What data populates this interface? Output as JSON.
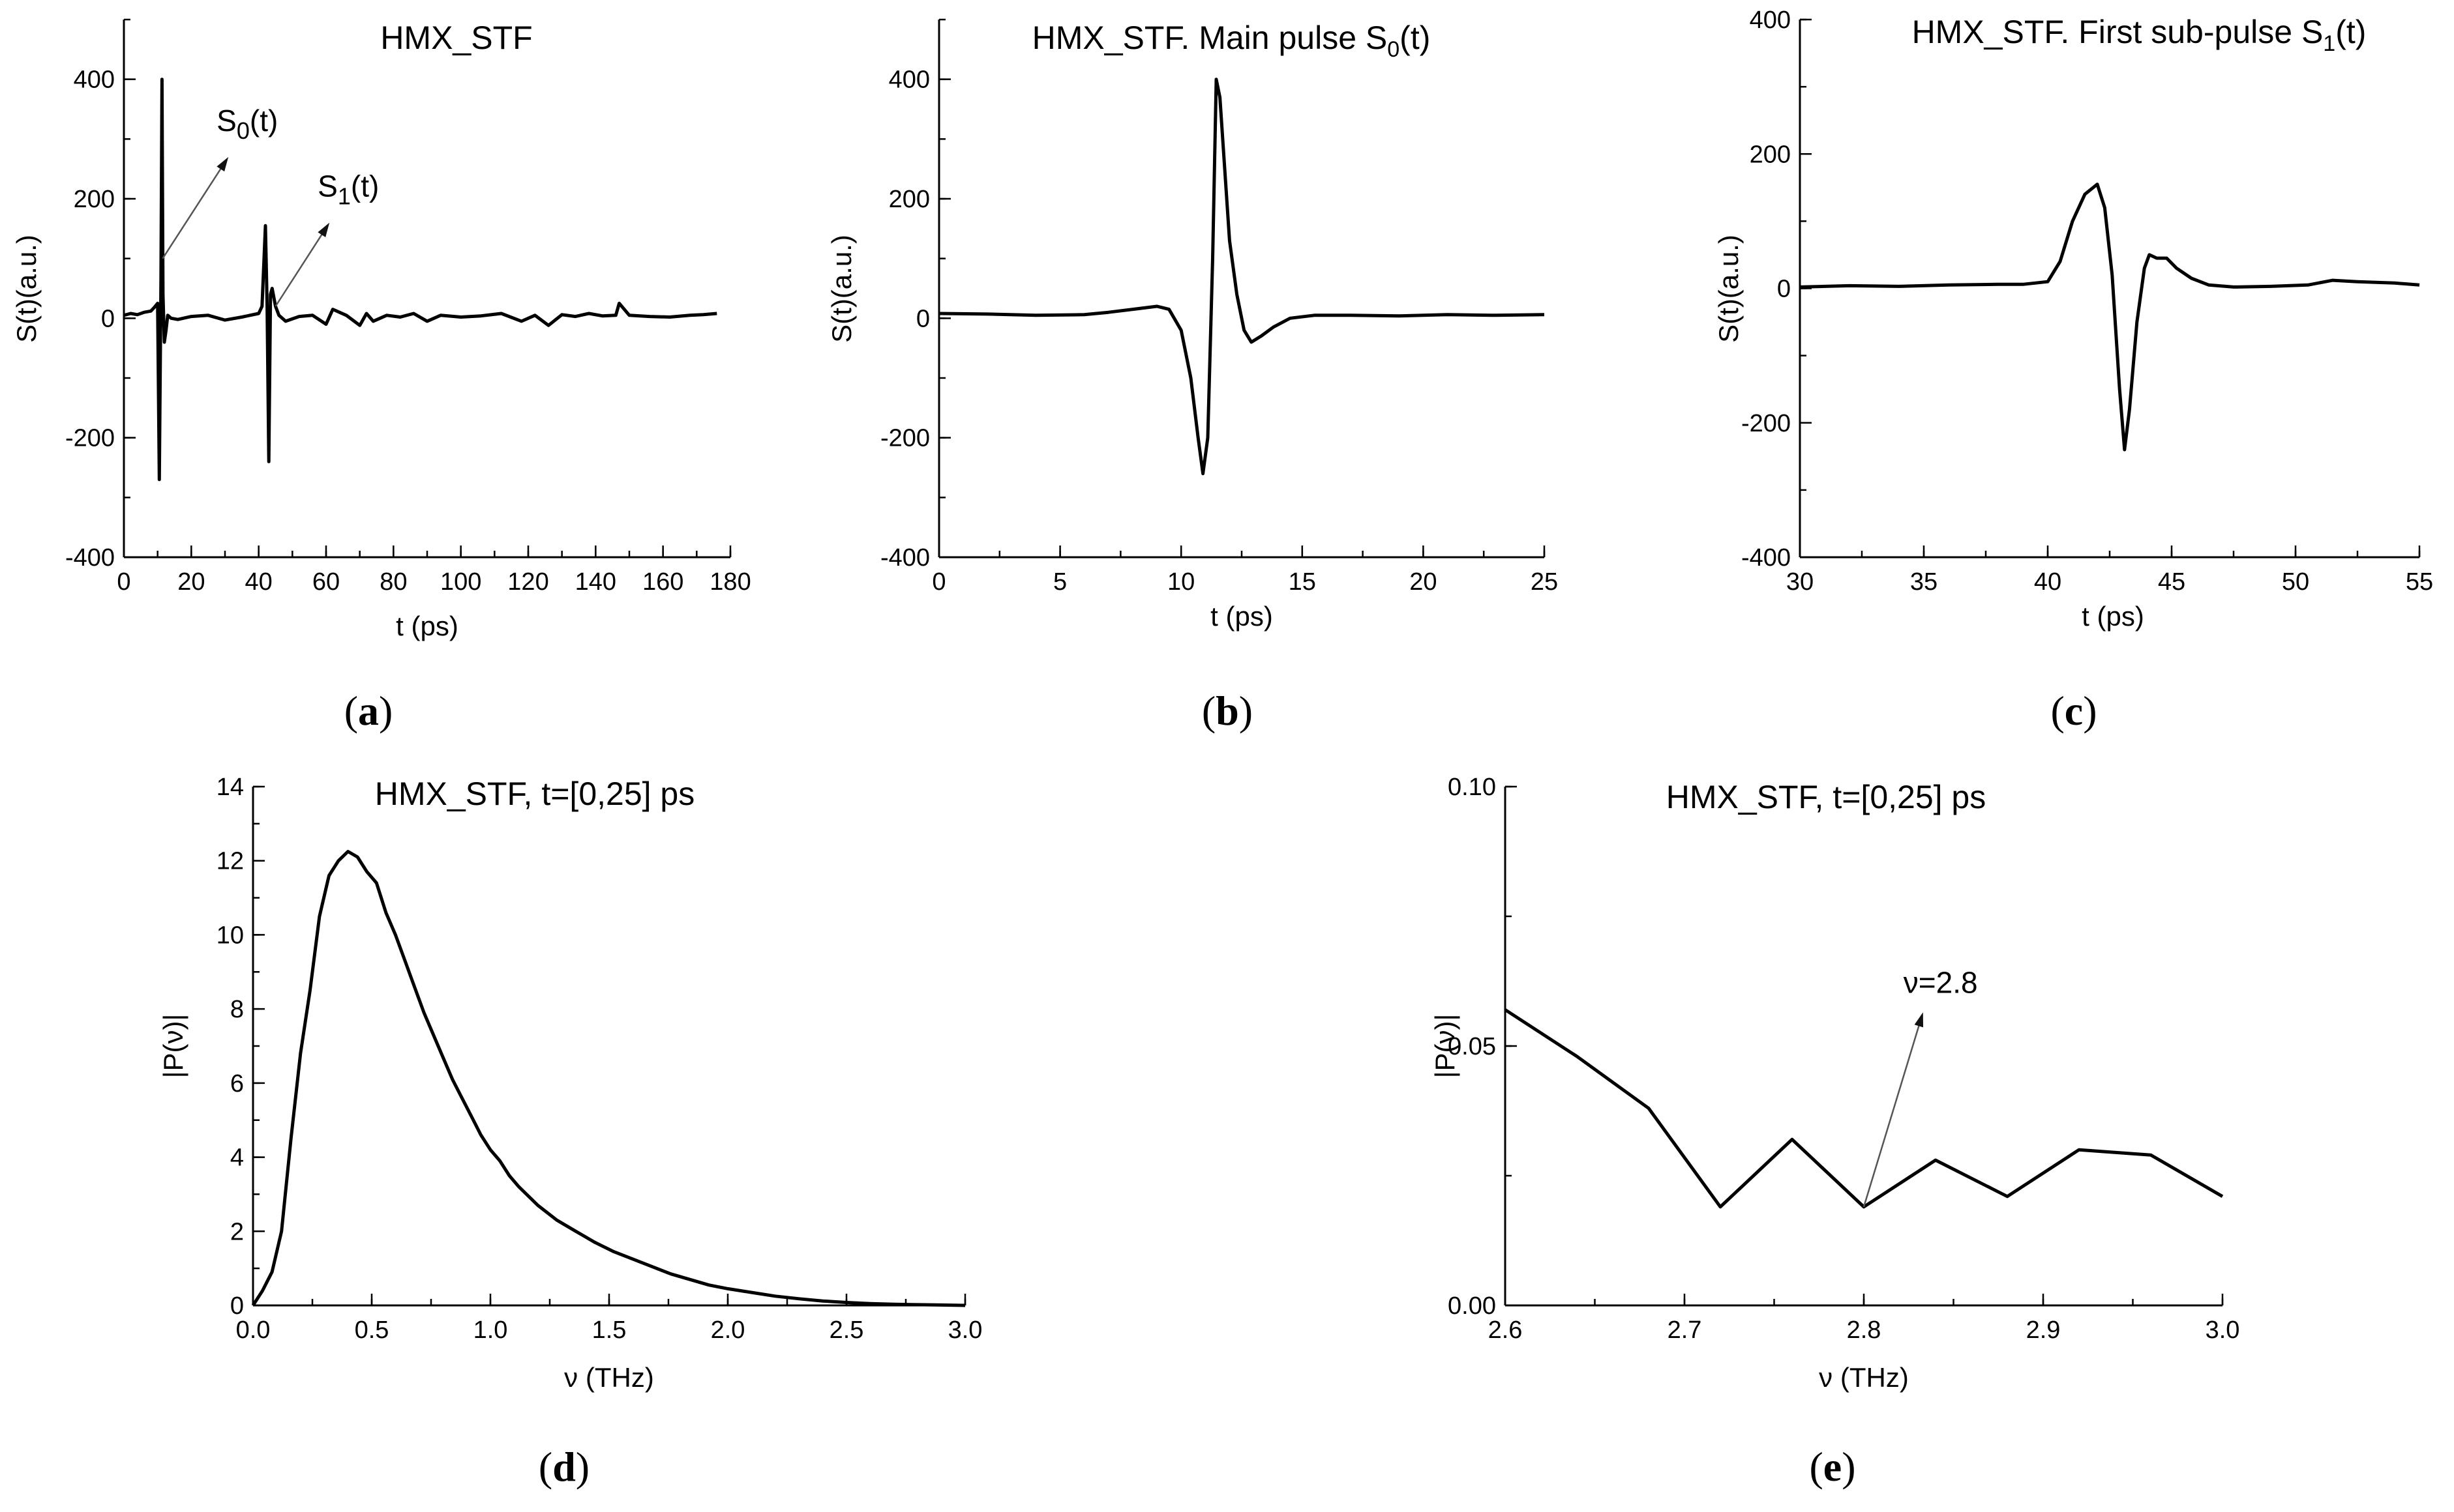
{
  "chart_data": [
    {
      "id": "a",
      "type": "line",
      "title": "HMX_STF",
      "panel_label": "a",
      "xlabel": "t (ps)",
      "ylabel": "S(t)(a.u.)",
      "xlim": [
        0,
        180
      ],
      "ylim": [
        -400,
        500
      ],
      "xticks": [
        0,
        20,
        40,
        60,
        80,
        100,
        120,
        140,
        160,
        180
      ],
      "yticks": [
        -400,
        -200,
        0,
        200,
        400
      ],
      "xminor": 10,
      "yminor": 100,
      "x": [
        0,
        2,
        4,
        6,
        8,
        9,
        10,
        10.5,
        11,
        11.3,
        11.6,
        12,
        12.5,
        13,
        14,
        16,
        20,
        25,
        30,
        35,
        40,
        41,
        42,
        42.5,
        43,
        43.5,
        44,
        45,
        46,
        48,
        52,
        56,
        60,
        62,
        66,
        70,
        72,
        74,
        78,
        82,
        86,
        90,
        94,
        100,
        106,
        112,
        118,
        122,
        126,
        130,
        134,
        138,
        142,
        146,
        147,
        150,
        156,
        162,
        168,
        172,
        176
      ],
      "y": [
        5,
        8,
        6,
        10,
        12,
        18,
        25,
        -270,
        60,
        400,
        40,
        -40,
        -20,
        5,
        0,
        -2,
        3,
        5,
        -3,
        2,
        8,
        20,
        155,
        20,
        -240,
        40,
        50,
        20,
        5,
        -5,
        3,
        5,
        -10,
        15,
        5,
        -12,
        8,
        -5,
        5,
        2,
        8,
        -5,
        5,
        2,
        4,
        8,
        -5,
        5,
        -12,
        6,
        3,
        8,
        4,
        5,
        25,
        5,
        3,
        2,
        5,
        6,
        8
      ],
      "annotations": [
        {
          "text": "S",
          "sub": "0",
          "suffix": "(t)",
          "from": [
            11.5,
            100
          ],
          "to": [
            31,
            270
          ]
        },
        {
          "text": "S",
          "sub": "1",
          "suffix": "(t)",
          "from": [
            45,
            20
          ],
          "to": [
            61,
            160
          ]
        }
      ]
    },
    {
      "id": "b",
      "type": "line",
      "title": "HMX_STF.  Main pulse  S",
      "title_sub": "0",
      "title_suffix": "(t)",
      "panel_label": "b",
      "xlabel": "t (ps)",
      "ylabel": "S(t)(a.u.)",
      "xlim": [
        0,
        25
      ],
      "ylim": [
        -400,
        500
      ],
      "xticks": [
        0,
        5,
        10,
        15,
        20,
        25
      ],
      "yticks": [
        -400,
        -200,
        0,
        200,
        400
      ],
      "xminor": 2.5,
      "yminor": 100,
      "x": [
        0,
        2,
        4,
        6,
        7,
        8,
        9,
        9.5,
        10,
        10.4,
        10.7,
        10.9,
        11.1,
        11.3,
        11.45,
        11.6,
        11.8,
        12.0,
        12.3,
        12.6,
        12.9,
        13.3,
        13.8,
        14.5,
        15.5,
        17,
        19,
        21,
        23,
        25
      ],
      "y": [
        8,
        7,
        5,
        6,
        10,
        15,
        20,
        15,
        -20,
        -100,
        -200,
        -260,
        -200,
        100,
        400,
        370,
        250,
        130,
        40,
        -20,
        -40,
        -30,
        -15,
        0,
        5,
        5,
        4,
        6,
        5,
        6
      ]
    },
    {
      "id": "c",
      "type": "line",
      "title": "HMX_STF. First sub-pulse  S",
      "title_sub": "1",
      "title_suffix": "(t)",
      "panel_label": "c",
      "xlabel": "t (ps)",
      "ylabel": "S(t)(a.u.)",
      "xlim": [
        30,
        55
      ],
      "ylim": [
        -400,
        400
      ],
      "xticks": [
        30,
        35,
        40,
        45,
        50,
        55
      ],
      "yticks": [
        -400,
        -200,
        0,
        200,
        400
      ],
      "xminor": 2.5,
      "yminor": 100,
      "x": [
        30,
        32,
        34,
        36,
        38,
        39,
        40,
        40.5,
        41,
        41.5,
        42,
        42.3,
        42.6,
        42.9,
        43.1,
        43.3,
        43.6,
        43.9,
        44.1,
        44.4,
        44.8,
        45.2,
        45.8,
        46.5,
        47.5,
        49,
        50.5,
        51.5,
        52.5,
        54,
        55
      ],
      "y": [
        2,
        4,
        3,
        5,
        6,
        6,
        10,
        40,
        100,
        140,
        155,
        120,
        20,
        -150,
        -240,
        -180,
        -50,
        30,
        50,
        45,
        45,
        30,
        15,
        5,
        2,
        3,
        5,
        12,
        10,
        8,
        5
      ]
    },
    {
      "id": "d",
      "type": "line",
      "title": "HMX_STF, t=[0,25] ps",
      "panel_label": "d",
      "xlabel": "ν (THz)",
      "ylabel": "|P(ν)|",
      "xlim": [
        0,
        3
      ],
      "ylim": [
        0,
        14
      ],
      "xticks": [
        0.0,
        0.5,
        1.0,
        1.5,
        2.0,
        2.5,
        3.0
      ],
      "yticks": [
        0,
        2,
        4,
        6,
        8,
        10,
        12,
        14
      ],
      "xminor": 0.25,
      "yminor": 1,
      "x": [
        0,
        0.04,
        0.08,
        0.12,
        0.16,
        0.2,
        0.24,
        0.28,
        0.32,
        0.36,
        0.4,
        0.44,
        0.48,
        0.52,
        0.56,
        0.6,
        0.64,
        0.68,
        0.72,
        0.76,
        0.8,
        0.84,
        0.88,
        0.92,
        0.96,
        1.0,
        1.04,
        1.08,
        1.12,
        1.2,
        1.28,
        1.36,
        1.44,
        1.52,
        1.6,
        1.68,
        1.76,
        1.84,
        1.92,
        2.0,
        2.1,
        2.2,
        2.3,
        2.4,
        2.5,
        2.6,
        2.7,
        2.8,
        2.9,
        3.0
      ],
      "y": [
        0,
        0.4,
        0.9,
        2.0,
        4.5,
        6.8,
        8.5,
        10.5,
        11.6,
        12.0,
        12.25,
        12.1,
        11.7,
        11.4,
        10.6,
        10.0,
        9.3,
        8.6,
        7.9,
        7.3,
        6.7,
        6.1,
        5.6,
        5.1,
        4.6,
        4.2,
        3.9,
        3.5,
        3.2,
        2.7,
        2.3,
        2.0,
        1.7,
        1.45,
        1.25,
        1.05,
        0.85,
        0.7,
        0.55,
        0.45,
        0.35,
        0.25,
        0.18,
        0.12,
        0.08,
        0.05,
        0.03,
        0.02,
        0.01,
        0.0
      ]
    },
    {
      "id": "e",
      "type": "line",
      "title": "HMX_STF, t=[0,25] ps",
      "panel_label": "e",
      "xlabel": "ν (THz)",
      "ylabel": "|P(ν)|",
      "xlim": [
        2.6,
        3.0
      ],
      "ylim": [
        0,
        0.1
      ],
      "xticks": [
        2.6,
        2.7,
        2.8,
        2.9,
        3.0
      ],
      "yticks": [
        0.0,
        0.05,
        0.1
      ],
      "ytick_labels": [
        "0.00",
        "0.05",
        "0.10"
      ],
      "xminor": 0.05,
      "yminor": 0.025,
      "x": [
        2.6,
        2.64,
        2.68,
        2.72,
        2.76,
        2.8,
        2.84,
        2.88,
        2.92,
        2.96,
        3.0
      ],
      "y": [
        0.057,
        0.048,
        0.038,
        0.019,
        0.032,
        0.019,
        0.028,
        0.021,
        0.03,
        0.029,
        0.021
      ],
      "annotations": [
        {
          "text": "ν=2.8",
          "from": [
            2.8,
            0.019
          ],
          "to": [
            2.833,
            0.0565
          ]
        }
      ]
    }
  ]
}
